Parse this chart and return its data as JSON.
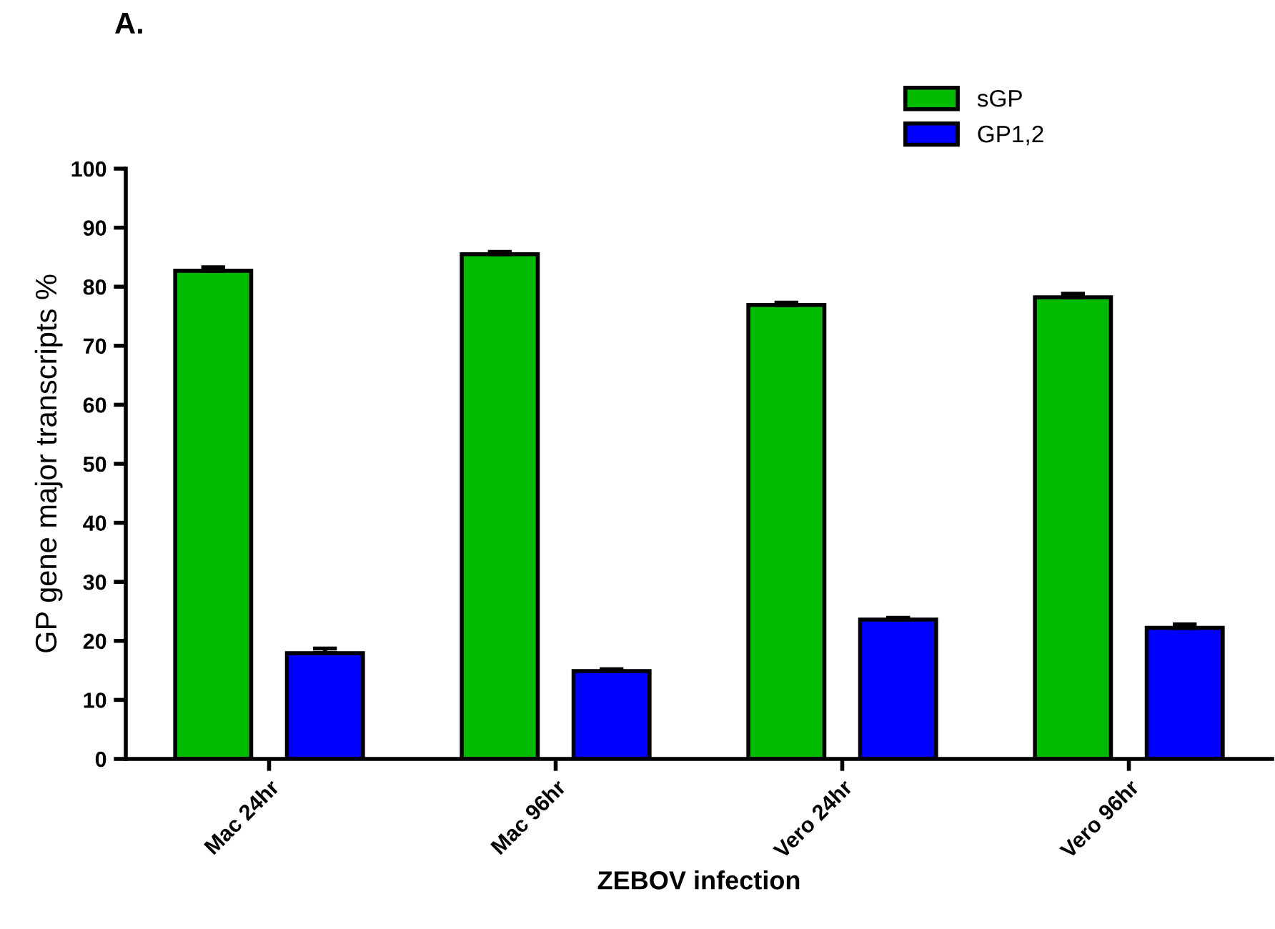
{
  "chart_data": {
    "type": "bar",
    "title": "A.",
    "xlabel": "ZEBOV infection",
    "ylabel": "GP gene major transcripts %",
    "categories": [
      "Mac 24hr",
      "Mac 96hr",
      "Vero 24hr",
      "Vero 96hr"
    ],
    "series": [
      {
        "name": "sGP",
        "color": "#00bb00",
        "values": [
          82.7,
          85.5,
          76.9,
          78.2
        ],
        "errors": [
          [
            82.7,
            83.3
          ],
          [
            85.5,
            85.9
          ],
          [
            76.9,
            77.3
          ],
          [
            78.2,
            78.8
          ]
        ]
      },
      {
        "name": "GP1,2",
        "color": "#0000ff",
        "values": [
          17.9,
          14.9,
          23.6,
          22.2
        ],
        "errors": [
          [
            17.9,
            18.7
          ],
          [
            14.9,
            15.2
          ],
          [
            23.6,
            23.9
          ],
          [
            22.2,
            22.8
          ]
        ]
      }
    ],
    "ylim": [
      0,
      100
    ],
    "yticks": [
      0,
      10,
      20,
      30,
      40,
      50,
      60,
      70,
      80,
      90,
      100
    ],
    "grid": false,
    "legend": "top right"
  }
}
